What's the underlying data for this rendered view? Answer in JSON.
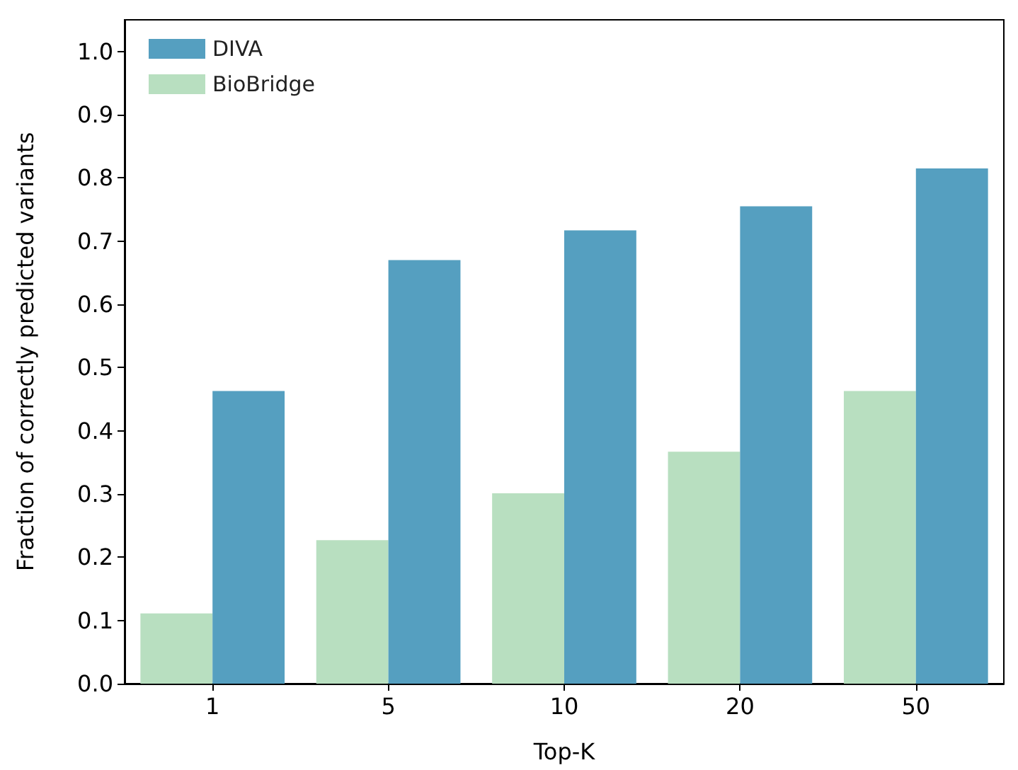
{
  "chart_data": {
    "type": "bar",
    "xlabel": "Top-K",
    "ylabel": "Fraction of correctly predicted variants",
    "categories": [
      "1",
      "5",
      "10",
      "20",
      "50"
    ],
    "series": [
      {
        "name": "BioBridge",
        "color": "#b8dfc0",
        "values": [
          0.111,
          0.227,
          0.301,
          0.367,
          0.463
        ]
      },
      {
        "name": "DIVA",
        "color": "#559fc0",
        "values": [
          0.463,
          0.67,
          0.717,
          0.755,
          0.815
        ]
      }
    ],
    "ylim": [
      0,
      1.05
    ],
    "yticks": [
      {
        "value": 0,
        "label": "0.0"
      },
      0.1,
      0.2,
      0.3,
      0.4,
      0.5,
      0.6,
      0.7,
      0.8,
      0.9,
      {
        "value": 1,
        "label": "1.0"
      }
    ],
    "grid": false,
    "legend": "top left"
  }
}
